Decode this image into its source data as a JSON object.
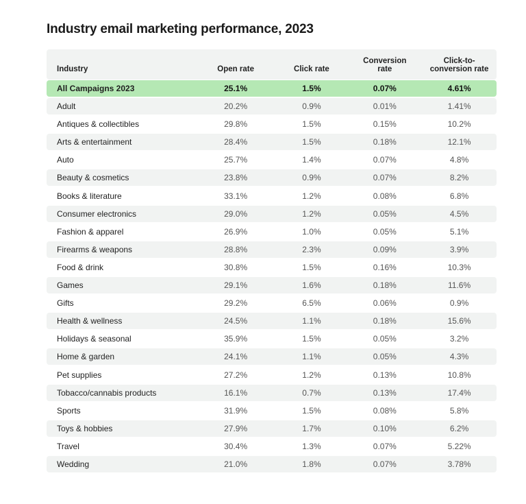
{
  "title": "Industry email marketing performance, 2023",
  "colors": {
    "highlight": "#b5e8b4",
    "stripe": "#f1f3f2"
  },
  "table": {
    "headers": [
      "Industry",
      "Open rate",
      "Click rate",
      "Conversion rate",
      "Click-to-conversion rate"
    ],
    "header_lines": {
      "conversion": [
        "Conversion",
        "rate"
      ],
      "ctc": [
        "Click-to-",
        "conversion rate"
      ]
    },
    "rows": [
      [
        "All Campaigns 2023",
        "25.1%",
        "1.5%",
        "0.07%",
        "4.61%"
      ],
      [
        "Adult",
        "20.2%",
        "0.9%",
        "0.01%",
        "1.41%"
      ],
      [
        "Antiques & collectibles",
        "29.8%",
        "1.5%",
        "0.15%",
        "10.2%"
      ],
      [
        "Arts & entertainment",
        "28.4%",
        "1.5%",
        "0.18%",
        "12.1%"
      ],
      [
        "Auto",
        "25.7%",
        "1.4%",
        "0.07%",
        "4.8%"
      ],
      [
        "Beauty & cosmetics",
        "23.8%",
        "0.9%",
        "0.07%",
        "8.2%"
      ],
      [
        "Books & literature",
        "33.1%",
        "1.2%",
        "0.08%",
        "6.8%"
      ],
      [
        "Consumer electronics",
        "29.0%",
        "1.2%",
        "0.05%",
        "4.5%"
      ],
      [
        "Fashion & apparel",
        "26.9%",
        "1.0%",
        "0.05%",
        "5.1%"
      ],
      [
        "Firearms & weapons",
        "28.8%",
        "2.3%",
        "0.09%",
        "3.9%"
      ],
      [
        "Food & drink",
        "30.8%",
        "1.5%",
        "0.16%",
        "10.3%"
      ],
      [
        "Games",
        "29.1%",
        "1.6%",
        "0.18%",
        "11.6%"
      ],
      [
        "Gifts",
        "29.2%",
        "6.5%",
        "0.06%",
        "0.9%"
      ],
      [
        "Health & wellness",
        "24.5%",
        "1.1%",
        "0.18%",
        "15.6%"
      ],
      [
        "Holidays & seasonal",
        "35.9%",
        "1.5%",
        "0.05%",
        "3.2%"
      ],
      [
        "Home & garden",
        "24.1%",
        "1.1%",
        "0.05%",
        "4.3%"
      ],
      [
        "Pet supplies",
        "27.2%",
        "1.2%",
        "0.13%",
        "10.8%"
      ],
      [
        "Tobacco/cannabis products",
        "16.1%",
        "0.7%",
        "0.13%",
        "17.4%"
      ],
      [
        "Sports",
        "31.9%",
        "1.5%",
        "0.08%",
        "5.8%"
      ],
      [
        "Toys & hobbies",
        "27.9%",
        "1.7%",
        "0.10%",
        "6.2%"
      ],
      [
        "Travel",
        "30.4%",
        "1.3%",
        "0.07%",
        "5.22%"
      ],
      [
        "Wedding",
        "21.0%",
        "1.8%",
        "0.07%",
        "3.78%"
      ]
    ]
  }
}
